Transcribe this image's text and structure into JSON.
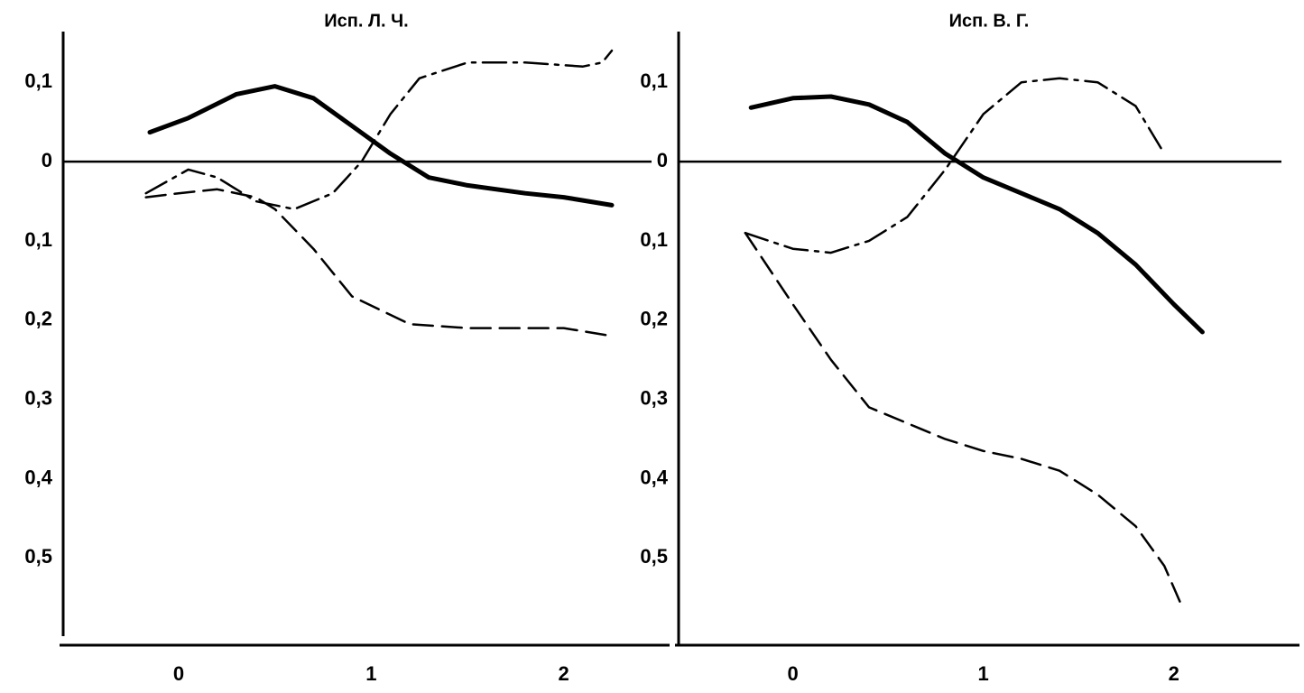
{
  "chart_data": [
    {
      "type": "line",
      "title": "Исп. Л. Ч.",
      "xlim": [
        -0.6,
        2.55
      ],
      "xticks": [
        0,
        1,
        2
      ],
      "ylim": [
        -0.61,
        0.164
      ],
      "yticks": [
        {
          "value": 0.1,
          "label": "0,1"
        },
        0,
        {
          "value": -0.1,
          "label": "0,1"
        },
        {
          "value": -0.2,
          "label": "0,2"
        },
        {
          "value": -0.3,
          "label": "0,3"
        },
        {
          "value": -0.4,
          "label": "0,4"
        },
        {
          "value": -0.5,
          "label": "0,5"
        }
      ],
      "zero_line": true,
      "grid": false,
      "series": [
        {
          "color": "#000000",
          "dash": "solid",
          "x": [
            -0.15,
            0.05,
            0.3,
            0.5,
            0.7,
            0.9,
            1.1,
            1.3,
            1.5,
            1.8,
            2.0,
            2.25
          ],
          "values": [
            0.037,
            0.055,
            0.085,
            0.095,
            0.08,
            0.045,
            0.01,
            -0.02,
            -0.03,
            -0.04,
            -0.045,
            -0.055
          ]
        },
        {
          "color": "#000000",
          "dash": "dashdot",
          "x": [
            -0.17,
            0.05,
            0.2,
            0.4,
            0.6,
            0.8,
            0.95,
            1.1,
            1.25,
            1.5,
            1.8,
            2.1,
            2.2,
            2.25
          ],
          "values": [
            -0.04,
            -0.01,
            -0.02,
            -0.05,
            -0.06,
            -0.04,
            0.0,
            0.06,
            0.105,
            0.125,
            0.125,
            0.12,
            0.125,
            0.14
          ]
        },
        {
          "color": "#000000",
          "dash": "dashed",
          "x": [
            -0.17,
            0.0,
            0.2,
            0.4,
            0.5,
            0.7,
            0.9,
            1.2,
            1.5,
            1.8,
            2.0,
            2.25
          ],
          "values": [
            -0.045,
            -0.04,
            -0.035,
            -0.045,
            -0.06,
            -0.11,
            -0.17,
            -0.205,
            -0.21,
            -0.21,
            -0.21,
            -0.22
          ]
        }
      ]
    },
    {
      "type": "line",
      "title": "Исп. В. Г.",
      "xlim": [
        -0.6,
        2.66
      ],
      "xticks": [
        0,
        1,
        2
      ],
      "ylim": [
        -0.61,
        0.164
      ],
      "yticks": [
        {
          "value": 0.1,
          "label": "0,1"
        },
        0,
        {
          "value": -0.1,
          "label": "0,1"
        },
        {
          "value": -0.2,
          "label": "0,2"
        },
        {
          "value": -0.3,
          "label": "0,3"
        },
        {
          "value": -0.4,
          "label": "0,4"
        },
        {
          "value": -0.5,
          "label": "0,5"
        }
      ],
      "zero_line": true,
      "grid": false,
      "series": [
        {
          "color": "#000000",
          "dash": "solid",
          "x": [
            -0.22,
            0.0,
            0.2,
            0.4,
            0.6,
            0.8,
            1.0,
            1.2,
            1.4,
            1.6,
            1.8,
            2.0,
            2.15
          ],
          "values": [
            0.068,
            0.08,
            0.082,
            0.072,
            0.05,
            0.01,
            -0.02,
            -0.04,
            -0.06,
            -0.09,
            -0.13,
            -0.18,
            -0.215
          ]
        },
        {
          "color": "#000000",
          "dash": "dashdot",
          "x": [
            -0.25,
            0.0,
            0.2,
            0.4,
            0.6,
            0.8,
            1.0,
            1.2,
            1.4,
            1.6,
            1.8,
            1.95
          ],
          "values": [
            -0.09,
            -0.11,
            -0.115,
            -0.1,
            -0.07,
            -0.01,
            0.06,
            0.1,
            0.105,
            0.1,
            0.07,
            0.01
          ]
        },
        {
          "color": "#000000",
          "dash": "dashed",
          "x": [
            -0.25,
            0.0,
            0.2,
            0.4,
            0.6,
            0.8,
            1.0,
            1.2,
            1.4,
            1.6,
            1.8,
            1.95,
            2.05
          ],
          "values": [
            -0.09,
            -0.18,
            -0.25,
            -0.31,
            -0.33,
            -0.35,
            -0.365,
            -0.375,
            -0.39,
            -0.42,
            -0.46,
            -0.51,
            -0.565
          ]
        }
      ]
    }
  ]
}
